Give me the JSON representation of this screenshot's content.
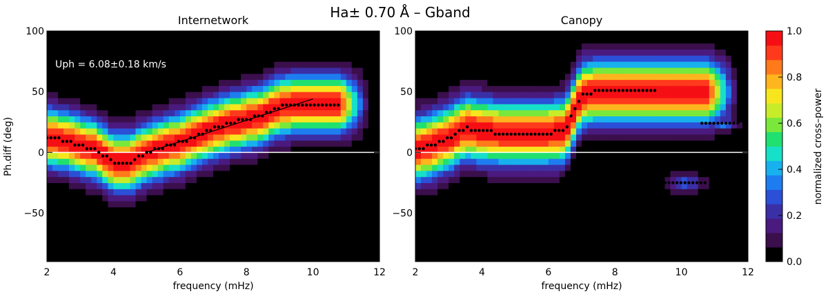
{
  "figure_title": "Ha± 0.70 Å  – Gband",
  "colorbar": {
    "label": "normalized cross–power",
    "ticks": [
      "0.0",
      "0.2",
      "0.4",
      "0.6",
      "0.8",
      "1.0"
    ],
    "colors": [
      "#000000",
      "#3a0f4c",
      "#4a1a7e",
      "#3b2fa6",
      "#2b4fd6",
      "#1d7df0",
      "#17b1ee",
      "#17e0c8",
      "#20e070",
      "#7ae83b",
      "#c8ec2a",
      "#f7e61e",
      "#ffb51e",
      "#ff7a1a",
      "#ff3a1c",
      "#f50f14"
    ]
  },
  "chart_data": [
    {
      "type": "heatmap",
      "title": "Internetwork",
      "xlabel": "frequency (mHz)",
      "ylabel": "Ph.diff (deg)",
      "xlim": [
        2,
        12
      ],
      "ylim": [
        -90,
        100
      ],
      "xticks": [
        "2",
        "4",
        "6",
        "8",
        "10",
        "12"
      ],
      "yticks": [
        "−50",
        "0",
        "50",
        "100"
      ],
      "annotation": "Uph = 6.08±0.18 km/s",
      "fit_line": {
        "x": [
          5.0,
          10.0
        ],
        "y": [
          0,
          44
        ]
      },
      "ridge": {
        "x": [
          2.0,
          2.5,
          3.0,
          3.5,
          4.0,
          4.5,
          5.0,
          5.5,
          6.0,
          6.5,
          7.0,
          7.5,
          8.0,
          8.5,
          9.0,
          9.5,
          10.0,
          10.5
        ],
        "y": [
          12,
          10,
          6,
          2,
          -8,
          -8,
          0,
          4,
          8,
          14,
          20,
          24,
          27,
          31,
          38,
          40,
          40,
          40
        ]
      },
      "ridge_width": 22,
      "secondary_blobs": []
    },
    {
      "type": "heatmap",
      "title": "Canopy",
      "xlabel": "frequency (mHz)",
      "ylabel": "",
      "xlim": [
        2,
        12
      ],
      "ylim": [
        -90,
        100
      ],
      "xticks": [
        "2",
        "4",
        "6",
        "8",
        "10",
        "12"
      ],
      "yticks": [
        "−50",
        "0",
        "50",
        "100"
      ],
      "annotation": "",
      "fit_line": null,
      "ridge": {
        "x": [
          2.0,
          2.5,
          3.0,
          3.5,
          4.0,
          4.5,
          5.0,
          5.5,
          6.0,
          6.5,
          7.0,
          7.5,
          8.0,
          8.5,
          9.0
        ],
        "y": [
          2,
          6,
          12,
          20,
          18,
          16,
          16,
          16,
          16,
          18,
          48,
          50,
          50,
          50,
          50
        ]
      },
      "ridge_width": 24,
      "secondary_blobs": [
        {
          "x": 11.2,
          "y": 24,
          "sx": 0.45,
          "sy": 6,
          "amp": 0.35
        },
        {
          "x": 10.1,
          "y": -25,
          "sx": 0.55,
          "sy": 7,
          "amp": 0.3
        }
      ]
    }
  ]
}
